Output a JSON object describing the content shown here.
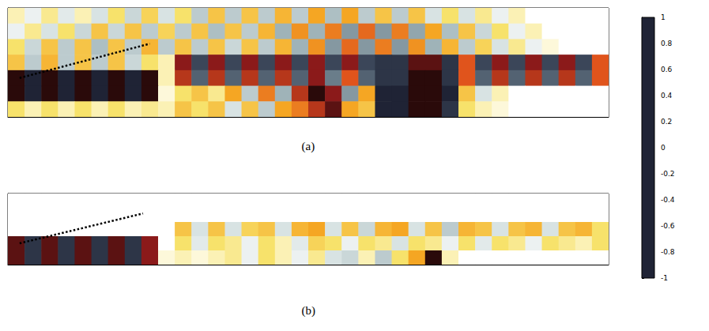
{
  "chart_data": [
    {
      "type": "heatmap",
      "title": "(a)",
      "xlim": [
        0,
        36
      ],
      "ylim": [
        0,
        7
      ],
      "xticks": [
        1.5,
        7.5,
        13.5,
        19.5,
        25.5,
        31.5
      ],
      "yticks": [
        3.5
      ],
      "tick_labels": false,
      "cells": [
        [
          0.1,
          -0.1,
          0.15,
          -0.15,
          0.1,
          -0.2,
          0.2,
          -0.25,
          0.25,
          -0.2,
          0.2,
          -0.3,
          0.3,
          -0.3,
          0.3,
          -0.3,
          0.35,
          -0.3,
          0.4,
          -0.35,
          0.4,
          -0.3,
          0.3,
          -0.3,
          0.3,
          -0.2,
          0.2,
          -0.2,
          0.15,
          -0.1,
          0.1,
          0,
          0,
          0,
          0,
          0
        ],
        [
          -0.1,
          0.15,
          -0.2,
          0.2,
          -0.25,
          0.3,
          -0.25,
          0.3,
          -0.3,
          0.25,
          -0.3,
          0.3,
          -0.35,
          0.3,
          -0.3,
          0.35,
          -0.4,
          0.45,
          -0.4,
          0.5,
          -0.5,
          0.55,
          -0.5,
          0.5,
          -0.45,
          0.4,
          -0.35,
          0.3,
          -0.25,
          0.2,
          -0.1,
          0.1,
          0,
          0,
          0,
          0
        ],
        [
          0.2,
          -0.25,
          0.3,
          -0.3,
          0.3,
          -0.35,
          0.3,
          -0.3,
          0.35,
          -0.3,
          0.3,
          -0.3,
          0.3,
          -0.25,
          0.3,
          -0.3,
          0.35,
          -0.4,
          0.45,
          -0.5,
          0.55,
          -0.5,
          0.5,
          -0.5,
          0.45,
          -0.4,
          0.35,
          -0.3,
          0.25,
          -0.2,
          0.15,
          -0.1,
          0.05,
          0,
          0,
          0
        ],
        [
          0.3,
          -0.3,
          0.35,
          -0.3,
          0.3,
          -0.3,
          0.3,
          -0.25,
          0.2,
          0.1,
          0.8,
          -0.8,
          0.8,
          -0.8,
          0.8,
          -0.8,
          0.8,
          -0.8,
          0.8,
          -0.8,
          0.8,
          -0.8,
          -0.9,
          -0.9,
          0.9,
          0.9,
          -0.9,
          0.6,
          -0.8,
          0.8,
          -0.8,
          0.8,
          -0.8,
          0.8,
          -0.8,
          0.6
        ],
        [
          1,
          -1,
          1,
          -1,
          1,
          -1,
          1,
          -1,
          1,
          0.1,
          0.7,
          -0.7,
          0.7,
          -0.7,
          0.7,
          -0.7,
          0.7,
          -0.7,
          0.8,
          -0.6,
          0.6,
          -0.7,
          -0.9,
          -0.9,
          1,
          1,
          -0.9,
          0.6,
          -0.7,
          0.7,
          -0.7,
          0.7,
          -0.7,
          0.7,
          -0.7,
          0.6
        ],
        [
          1,
          -1,
          1,
          -1,
          1,
          -1,
          1,
          -1,
          1,
          0.05,
          0.2,
          0.3,
          0.15,
          0.4,
          -0.3,
          0.5,
          -0.4,
          0.7,
          1,
          0.8,
          -0.5,
          0.4,
          -1,
          -1,
          1,
          1,
          -1,
          0.3,
          -0.2,
          0.1,
          0,
          0,
          0,
          0,
          0,
          0
        ],
        [
          0.2,
          0.1,
          0.2,
          0.1,
          0.2,
          0.1,
          0.2,
          0.1,
          0.15,
          0.1,
          0.3,
          0.2,
          0.3,
          -0.2,
          0.3,
          -0.3,
          0.4,
          0.5,
          0.7,
          0.9,
          0.4,
          0.3,
          -1,
          -1,
          1,
          1,
          -0.9,
          0.2,
          0.1,
          0.05,
          0,
          0,
          0,
          0,
          0,
          0
        ]
      ],
      "series": [
        {
          "type": "line",
          "line_style": "dotted",
          "color": "#000000",
          "x": [
            0.7,
            8.5
          ],
          "y": [
            2.5,
            4.7
          ]
        }
      ]
    },
    {
      "type": "heatmap",
      "title": "(b)",
      "xlim": [
        0,
        36
      ],
      "ylim": [
        0,
        5
      ],
      "xticks": [
        1.5,
        7.5,
        13.5,
        19.5,
        25.5,
        31.5
      ],
      "yticks": [
        2.5
      ],
      "tick_labels": false,
      "cells": [
        [
          0,
          0,
          0,
          0,
          0,
          0,
          0,
          0,
          0,
          0,
          0,
          0,
          0,
          0,
          0,
          0,
          0,
          0,
          0,
          0,
          0,
          0,
          0,
          0,
          0,
          0,
          0,
          0,
          0,
          0,
          0,
          0,
          0,
          0,
          0,
          0
        ],
        [
          0,
          0,
          0,
          0,
          0,
          0,
          0,
          0,
          0,
          0,
          0,
          0,
          0,
          0,
          0,
          0,
          0,
          0,
          0,
          0,
          0,
          0,
          0,
          0,
          0,
          0,
          0,
          0,
          0,
          0,
          0,
          0,
          0,
          0,
          0,
          0
        ],
        [
          0,
          0,
          0,
          0,
          0,
          0,
          0,
          0,
          0,
          0,
          0.3,
          -0.2,
          0.3,
          -0.2,
          0.25,
          0.3,
          -0.2,
          0.35,
          0.4,
          -0.2,
          0.3,
          -0.25,
          0.35,
          0.4,
          -0.2,
          0.3,
          -0.3,
          0.35,
          0.3,
          -0.2,
          0.3,
          0.35,
          -0.2,
          0.3,
          0.35,
          0.2
        ],
        [
          0.9,
          -0.9,
          0.9,
          -0.9,
          0.9,
          -0.9,
          0.9,
          -0.9,
          0.8,
          0,
          0.2,
          -0.15,
          0.2,
          0.15,
          -0.1,
          0.2,
          0.1,
          -0.15,
          0.25,
          0.2,
          -0.1,
          0.2,
          0.15,
          -0.2,
          0.2,
          0.15,
          -0.1,
          0.2,
          -0.15,
          0.2,
          0.15,
          -0.1,
          0.2,
          0.15,
          0.1,
          0.2
        ],
        [
          0.9,
          -0.9,
          0.9,
          -0.9,
          0.9,
          -0.9,
          0.9,
          -0.9,
          0.8,
          0.05,
          0.1,
          0.05,
          0.1,
          0.15,
          -0.1,
          0.2,
          0.1,
          -0.1,
          0.15,
          -0.2,
          -0.25,
          0.1,
          -0.3,
          0.2,
          0.4,
          1,
          0.1,
          0,
          0,
          0,
          0,
          0,
          0,
          0,
          0,
          0
        ]
      ],
      "series": [
        {
          "type": "line",
          "line_style": "dotted",
          "color": "#000000",
          "x": [
            0.7,
            8.1
          ],
          "y": [
            1.5,
            3.6
          ]
        }
      ]
    }
  ],
  "colorbar": {
    "range": [
      -1,
      1
    ],
    "ticks": [
      -1,
      -0.8,
      -0.6,
      -0.4,
      -0.2,
      0,
      0.2,
      0.4,
      0.6,
      0.8,
      1
    ]
  }
}
